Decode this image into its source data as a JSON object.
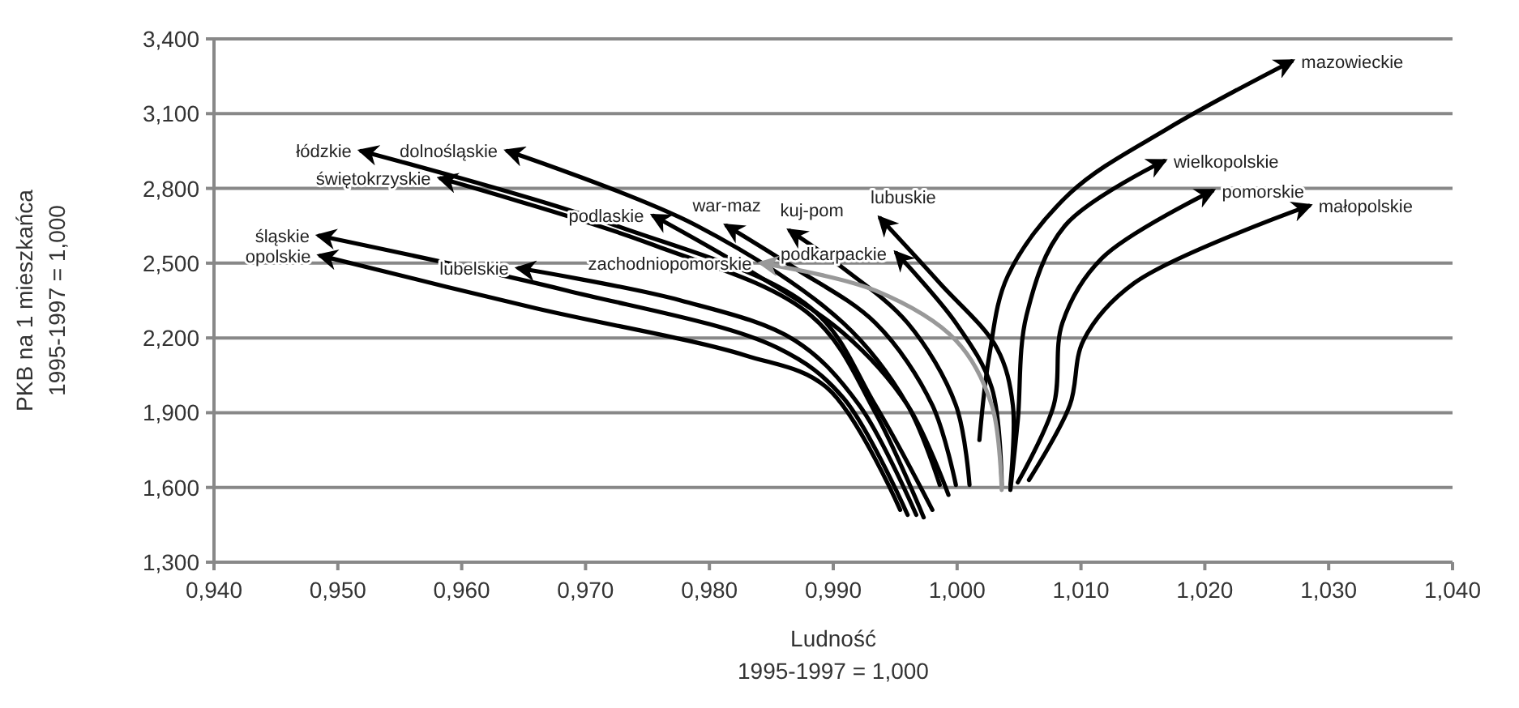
{
  "chart_data": {
    "type": "line",
    "xlabel": "Ludność\n1995-1997 = 1,000",
    "ylabel": "PKB na 1 mieszkańca\n1995-1997 = 1,000",
    "xlim": [
      0.94,
      1.04
    ],
    "ylim": [
      1.3,
      3.4
    ],
    "xticks": [
      {
        "value": 0.94,
        "label": "0,940"
      },
      {
        "value": 0.95,
        "label": "0,950"
      },
      {
        "value": 0.96,
        "label": "0,960"
      },
      {
        "value": 0.97,
        "label": "0,970"
      },
      {
        "value": 0.98,
        "label": "0,980"
      },
      {
        "value": 0.99,
        "label": "0,990"
      },
      {
        "value": 1.0,
        "label": "1,000"
      },
      {
        "value": 1.01,
        "label": "1,010"
      },
      {
        "value": 1.02,
        "label": "1,020"
      },
      {
        "value": 1.03,
        "label": "1,030"
      },
      {
        "value": 1.04,
        "label": "1,040"
      }
    ],
    "yticks": [
      {
        "value": 1.3,
        "label": "1,300"
      },
      {
        "value": 1.6,
        "label": "1,600"
      },
      {
        "value": 1.9,
        "label": "1,900"
      },
      {
        "value": 2.2,
        "label": "2,200"
      },
      {
        "value": 2.5,
        "label": "2,500"
      },
      {
        "value": 2.8,
        "label": "2,800"
      },
      {
        "value": 3.1,
        "label": "3,100"
      },
      {
        "value": 3.4,
        "label": "3,400"
      }
    ],
    "grid": "y",
    "legend": false,
    "marker": "none",
    "line_style": "solid",
    "series": [
      {
        "name": "mazowieckie",
        "color": "#000000",
        "x": [
          1.0018,
          1.0026,
          1.0041,
          1.0091,
          1.017,
          1.027
        ],
        "values": [
          1.79,
          2.13,
          2.45,
          2.78,
          3.04,
          3.31
        ]
      },
      {
        "name": "wielkopolskie",
        "color": "#000000",
        "x": [
          1.0043,
          1.0049,
          1.0056,
          1.0087,
          1.0167
        ],
        "values": [
          1.59,
          1.87,
          2.29,
          2.65,
          2.91
        ]
      },
      {
        "name": "pomorskie",
        "color": "#000000",
        "x": [
          1.0049,
          1.0078,
          1.0085,
          1.0117,
          1.0206
        ],
        "values": [
          1.62,
          1.93,
          2.26,
          2.52,
          2.79
        ]
      },
      {
        "name": "małopolskie",
        "color": "#000000",
        "x": [
          1.0058,
          1.0091,
          1.0102,
          1.0143,
          1.0284
        ],
        "values": [
          1.63,
          1.93,
          2.19,
          2.42,
          2.73
        ]
      },
      {
        "name": "lubuskie",
        "color": "#000000",
        "x": [
          1.0043,
          1.0045,
          1.0032,
          0.9986,
          0.9938
        ],
        "values": [
          1.61,
          1.93,
          2.16,
          2.42,
          2.68
        ]
      },
      {
        "name": "podkarpackie",
        "color": "#000000",
        "x": [
          1.0036,
          1.0028,
          0.9999,
          0.9951
        ],
        "values": [
          1.61,
          2.0,
          2.26,
          2.54
        ]
      },
      {
        "name": "kuj-pom",
        "color": "#000000",
        "x": [
          1.001,
          0.9999,
          0.996,
          0.9908,
          0.9865
        ],
        "values": [
          1.61,
          1.93,
          2.26,
          2.48,
          2.63
        ]
      },
      {
        "name": "war-maz",
        "color": "#000000",
        "x": [
          0.9999,
          0.998,
          0.9934,
          0.9869,
          0.9814
        ],
        "values": [
          1.61,
          1.93,
          2.26,
          2.48,
          2.65
        ]
      },
      {
        "name": "podlaskie",
        "color": "#000000",
        "x": [
          0.9993,
          0.996,
          0.9908,
          0.9829,
          0.9755
        ],
        "values": [
          1.57,
          1.93,
          2.22,
          2.48,
          2.69
        ]
      },
      {
        "name": "dolnośląskie",
        "color": "#000000",
        "x": [
          0.9986,
          0.996,
          0.9908,
          0.979,
          0.9637
        ],
        "values": [
          1.61,
          1.93,
          2.26,
          2.65,
          2.95
        ]
      },
      {
        "name": "łódzkie",
        "color": "#000000",
        "x": [
          0.998,
          0.9934,
          0.9882,
          0.9725,
          0.9519
        ],
        "values": [
          1.51,
          1.93,
          2.32,
          2.65,
          2.95
        ]
      },
      {
        "name": "świętokrzyskie",
        "color": "#000000",
        "x": [
          0.9973,
          0.9934,
          0.9882,
          0.9751,
          0.9583
        ],
        "values": [
          1.48,
          1.9,
          2.29,
          2.58,
          2.84
        ]
      },
      {
        "name": "zachodniopomorskie",
        "color": "#999999",
        "x": [
          1.0036,
          1.0028,
          0.9999,
          0.9934,
          0.9842
        ],
        "values": [
          1.59,
          1.93,
          2.19,
          2.39,
          2.5
        ]
      },
      {
        "name": "lubelskie",
        "color": "#000000",
        "x": [
          0.9967,
          0.9921,
          0.9869,
          0.9777,
          0.9646
        ],
        "values": [
          1.49,
          1.93,
          2.19,
          2.35,
          2.48
        ]
      },
      {
        "name": "śląskie",
        "color": "#000000",
        "x": [
          0.996,
          0.9908,
          0.9855,
          0.9685,
          0.9485
        ],
        "values": [
          1.49,
          1.96,
          2.16,
          2.39,
          2.61
        ]
      },
      {
        "name": "opolskie",
        "color": "#000000",
        "x": [
          0.9954,
          0.9895,
          0.9829,
          0.9659,
          0.9486
        ],
        "values": [
          1.51,
          2.0,
          2.13,
          2.32,
          2.53
        ]
      }
    ]
  }
}
